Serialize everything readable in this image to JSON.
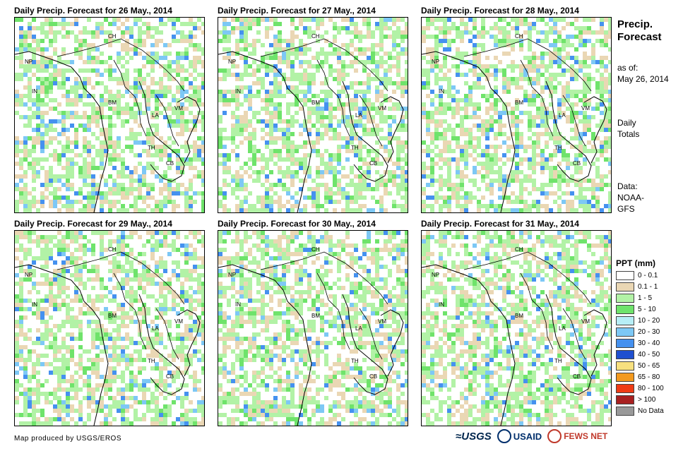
{
  "panels": [
    {
      "title": "Daily Precip. Forecast for 26 May., 2014"
    },
    {
      "title": "Daily Precip. Forecast for 27 May., 2014"
    },
    {
      "title": "Daily Precip. Forecast for 28 May., 2014"
    },
    {
      "title": "Daily Precip. Forecast for 29 May., 2014"
    },
    {
      "title": "Daily Precip. Forecast for 30 May., 2014"
    },
    {
      "title": "Daily Precip. Forecast for 31 May., 2014"
    }
  ],
  "country_labels": {
    "ch": "CH",
    "np": "NP",
    "in": "IN",
    "bm": "BM",
    "la": "LA",
    "vm": "VM",
    "th": "TH",
    "cb": "CB"
  },
  "sidebar": {
    "title_line1": "Precip.",
    "title_line2": "Forecast",
    "asof_label": "as of:",
    "asof_date": "May 26, 2014",
    "totals_line1": "Daily",
    "totals_line2": "Totals",
    "data_label": "Data:",
    "data_line1": "NOAA-",
    "data_line2": "GFS"
  },
  "legend": {
    "title": "PPT (mm)",
    "items": [
      {
        "label": "0 - 0.1",
        "color": "#ffffff"
      },
      {
        "label": "0.1 - 1",
        "color": "#ead7b4"
      },
      {
        "label": "1 - 5",
        "color": "#b2f2a6"
      },
      {
        "label": "5 - 10",
        "color": "#6fe36b"
      },
      {
        "label": "10 - 20",
        "color": "#b7eef6"
      },
      {
        "label": "20 - 30",
        "color": "#7dc8f5"
      },
      {
        "label": "30 - 40",
        "color": "#4591ef"
      },
      {
        "label": "40 - 50",
        "color": "#1f4fcf"
      },
      {
        "label": "50 - 65",
        "color": "#f7e07f"
      },
      {
        "label": "65 - 80",
        "color": "#f39a1f"
      },
      {
        "label": "80 - 100",
        "color": "#ef3b14"
      },
      {
        "label": "> 100",
        "color": "#a82020"
      },
      {
        "label": "No Data",
        "color": "#999999"
      }
    ]
  },
  "footer": {
    "credit": "Map produced by USGS/EROS",
    "logo_usgs": "≈USGS",
    "logo_usaid": "USAID",
    "logo_fews": "FEWS NET"
  }
}
